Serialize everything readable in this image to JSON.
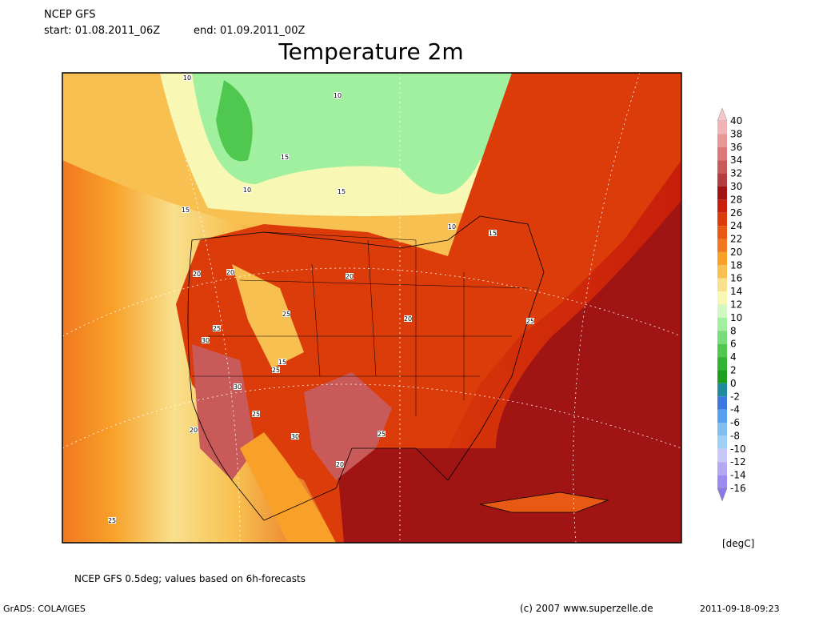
{
  "header": {
    "model": "NCEP GFS",
    "start": "start: 01.08.2011_06Z",
    "end": "end: 01.09.2011_00Z"
  },
  "title": "Temperature 2m",
  "map": {
    "contour_labels": [
      "10",
      "10",
      "15",
      "10",
      "15",
      "15",
      "10",
      "15",
      "20",
      "20",
      "20",
      "25",
      "20",
      "25",
      "30",
      "25",
      "30",
      "25",
      "30",
      "20",
      "25",
      "25",
      "20",
      "25",
      "15"
    ]
  },
  "colorbar": {
    "labels": [
      40,
      38,
      36,
      34,
      32,
      30,
      28,
      26,
      24,
      22,
      20,
      18,
      16,
      14,
      12,
      10,
      8,
      6,
      4,
      2,
      0,
      -2,
      -4,
      -6,
      -8,
      -10,
      -12,
      -14,
      -16
    ],
    "colors": [
      "#f8c8c8",
      "#f0b4b4",
      "#e89696",
      "#dc7878",
      "#c85a5a",
      "#b43c3c",
      "#a01414",
      "#c81e0a",
      "#dc3c0a",
      "#e85a14",
      "#f07820",
      "#f8a028",
      "#f8c050",
      "#f8e08c",
      "#f8f8b4",
      "#d0f8c0",
      "#a0f0a0",
      "#78dc78",
      "#50c850",
      "#32b432",
      "#1e9e1e",
      "#1e8c9c",
      "#3c78e0",
      "#5aa0f0",
      "#80c0f0",
      "#a0d0f8",
      "#c8c8f8",
      "#b4a8f0",
      "#9c8cf0",
      "#8c78e8"
    ],
    "unit": "[degC]"
  },
  "footer": {
    "note": "NCEP GFS 0.5deg; values based on 6h-forecasts",
    "software": "GrADS: COLA/IGES",
    "copyright": "(c) 2007 www.superzelle.de",
    "timestamp": "2011-09-18-09:23"
  }
}
